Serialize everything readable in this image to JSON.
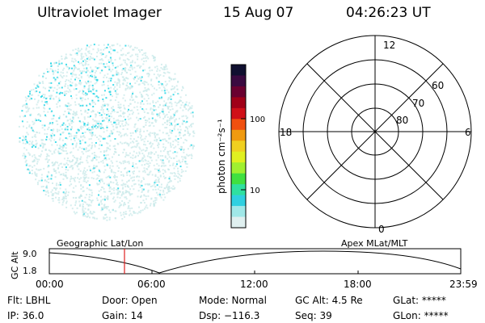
{
  "header": {
    "title": "Ultraviolet Imager",
    "date": "15 Aug 07",
    "time": "04:26:23 UT"
  },
  "colorbar": {
    "label": "photon cm⁻²s⁻¹",
    "ticks": [
      "100",
      "10"
    ],
    "colors": [
      "#101030",
      "#3a0a40",
      "#6a0030",
      "#a00018",
      "#d01018",
      "#f05010",
      "#f09a10",
      "#f0d020",
      "#e0f020",
      "#a0f030",
      "#40e040",
      "#30e0a0",
      "#30d0e0",
      "#a0e8e8",
      "#e0f0f0"
    ]
  },
  "polar_plot": {
    "mlt_labels": [
      "12",
      "18",
      "6",
      "0"
    ],
    "lat_labels": [
      "60",
      "70",
      "80"
    ]
  },
  "timeline": {
    "y_title": "GC Alt",
    "y_labels": [
      "9.0",
      "1.8"
    ],
    "left_label": "Geographic Lat/Lon",
    "right_label": "Apex MLat/MLT",
    "x_labels": [
      "00:00",
      "06:00",
      "12:00",
      "18:00",
      "23:59"
    ]
  },
  "info": {
    "row1": [
      "Flt: LBHL",
      "Door: Open",
      "Mode: Normal",
      "GC Alt: 4.5 Re",
      "GLat: *****"
    ],
    "row2": [
      "IP: 36.0",
      "Gain: 14",
      "Dsp: −116.3",
      "Seq: 39",
      "GLon: *****"
    ]
  },
  "colors": {
    "marker": "#e02020",
    "cyan_speckle": "#30d8e8",
    "light_speckle": "#c8e8e8"
  }
}
